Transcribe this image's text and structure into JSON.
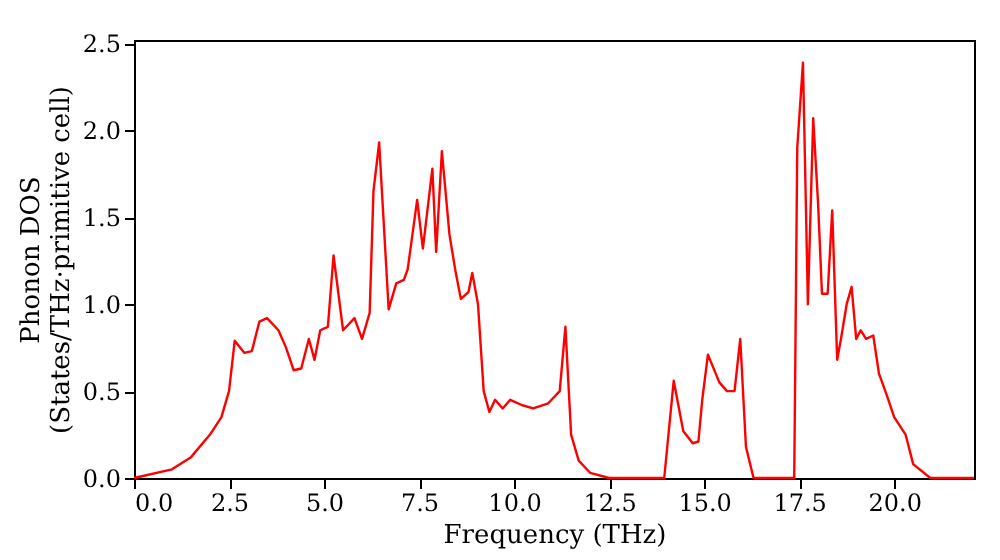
{
  "chart_data": {
    "type": "line",
    "xlabel": "Frequency (THz)",
    "ylabel": "Phonon DOS\n(States/THz·primitive cell)",
    "xlim": [
      0,
      22.1
    ],
    "ylim": [
      0,
      2.52
    ],
    "xticks": [
      {
        "value": 0,
        "label": "0.0"
      },
      2.5,
      {
        "value": 5,
        "label": "5.0"
      },
      7.5,
      {
        "value": 10,
        "label": "10.0"
      },
      12.5,
      {
        "value": 15,
        "label": "15.0"
      },
      17.5,
      {
        "value": 20,
        "label": "20.0"
      }
    ],
    "yticks": [
      {
        "value": 0,
        "label": "0.0"
      },
      0.5,
      {
        "value": 1,
        "label": "1.0"
      },
      1.5,
      {
        "value": 2,
        "label": "2.0"
      },
      2.5
    ],
    "grid": false,
    "line_style": "solid",
    "marker": "none",
    "series": [
      {
        "color": "#ff0000",
        "x": [
          0,
          1.0,
          1.5,
          2.0,
          2.3,
          2.5,
          2.65,
          2.9,
          3.1,
          3.3,
          3.5,
          3.8,
          4.0,
          4.2,
          4.4,
          4.6,
          4.75,
          4.9,
          5.1,
          5.25,
          5.5,
          5.8,
          6.0,
          6.2,
          6.3,
          6.45,
          6.7,
          6.9,
          7.1,
          7.2,
          7.45,
          7.6,
          7.85,
          7.95,
          8.1,
          8.3,
          8.45,
          8.6,
          8.8,
          8.9,
          9.05,
          9.2,
          9.35,
          9.5,
          9.7,
          9.9,
          10.2,
          10.5,
          10.9,
          11.2,
          11.35,
          11.5,
          11.7,
          12.0,
          12.5,
          13.95,
          14.2,
          14.45,
          14.7,
          14.85,
          14.95,
          15.1,
          15.4,
          15.6,
          15.8,
          15.95,
          16.1,
          16.3,
          17.37,
          17.45,
          17.6,
          17.73,
          17.87,
          18.0,
          18.1,
          18.25,
          18.37,
          18.5,
          18.6,
          18.75,
          18.88,
          19.0,
          19.12,
          19.26,
          19.45,
          19.6,
          19.8,
          20.0,
          20.3,
          20.5,
          20.95,
          22.1
        ],
        "values": [
          0,
          0.05,
          0.12,
          0.25,
          0.35,
          0.5,
          0.79,
          0.72,
          0.73,
          0.9,
          0.92,
          0.85,
          0.75,
          0.62,
          0.63,
          0.8,
          0.68,
          0.85,
          0.87,
          1.28,
          0.85,
          0.92,
          0.8,
          0.95,
          1.65,
          1.93,
          0.97,
          1.12,
          1.14,
          1.2,
          1.6,
          1.32,
          1.78,
          1.3,
          1.88,
          1.4,
          1.2,
          1.03,
          1.07,
          1.18,
          1.0,
          0.5,
          0.38,
          0.45,
          0.4,
          0.45,
          0.42,
          0.4,
          0.43,
          0.5,
          0.87,
          0.25,
          0.1,
          0.03,
          0,
          0,
          0.56,
          0.27,
          0.2,
          0.21,
          0.45,
          0.71,
          0.55,
          0.5,
          0.5,
          0.8,
          0.18,
          0,
          0,
          1.9,
          2.39,
          1.0,
          2.07,
          1.57,
          1.06,
          1.06,
          1.54,
          0.68,
          0.8,
          1.0,
          1.1,
          0.8,
          0.85,
          0.8,
          0.82,
          0.6,
          0.48,
          0.35,
          0.25,
          0.08,
          0,
          0
        ]
      }
    ]
  }
}
